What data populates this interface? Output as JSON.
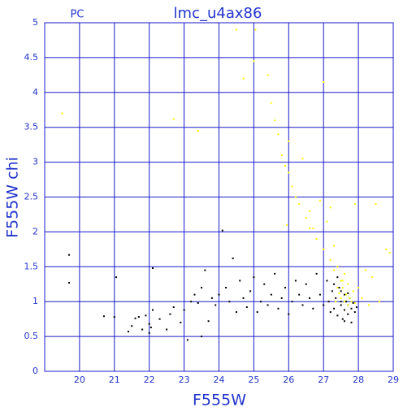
{
  "chart_data": {
    "type": "scatter",
    "title": "lmc_u4ax86",
    "corner_label": "PC",
    "x_label": "F555W",
    "y_label": "F555W chi",
    "xlim": [
      19,
      29
    ],
    "ylim": [
      0,
      5
    ],
    "xticks": [
      20,
      21,
      22,
      23,
      24,
      25,
      26,
      27,
      28,
      29
    ],
    "yticks": [
      0,
      0.5,
      1,
      1.5,
      2,
      2.5,
      3,
      3.5,
      4,
      4.5,
      5
    ],
    "grid": true,
    "grid_color": "#1a1acc",
    "series": [
      {
        "color": "#000000",
        "x": [
          19.7,
          19.7,
          20.7,
          21.0,
          21.05,
          21.4,
          21.5,
          21.6,
          21.7,
          21.8,
          21.9,
          22.0,
          22.0,
          22.05,
          22.1,
          22.1,
          22.3,
          22.5,
          22.6,
          22.7,
          22.9,
          23.0,
          23.1,
          23.2,
          23.3,
          23.4,
          23.5,
          23.5,
          23.6,
          23.7,
          23.8,
          23.9,
          24.0,
          24.1,
          24.2,
          24.3,
          24.4,
          24.5,
          24.6,
          24.7,
          24.8,
          24.9,
          25.0,
          25.1,
          25.2,
          25.3,
          25.4,
          25.5,
          25.6,
          25.7,
          25.8,
          25.9,
          26.0,
          26.1,
          26.2,
          26.3,
          26.4,
          26.5,
          26.6,
          26.7,
          26.8,
          26.9,
          27.0,
          27.1,
          27.15,
          27.2,
          27.25,
          27.3,
          27.35,
          27.4,
          27.45,
          27.5,
          27.5,
          27.55,
          27.6,
          27.6,
          27.65,
          27.7,
          27.7,
          27.75,
          27.8,
          27.8,
          27.85,
          27.9,
          27.95,
          27.4,
          27.3,
          27.5,
          27.6,
          27.7
        ],
        "y": [
          1.67,
          1.27,
          0.79,
          0.78,
          1.35,
          0.57,
          0.65,
          0.76,
          0.78,
          0.6,
          0.8,
          0.55,
          0.68,
          0.63,
          1.48,
          0.88,
          0.75,
          0.6,
          0.82,
          0.92,
          0.7,
          0.88,
          0.45,
          1.0,
          1.1,
          0.98,
          1.2,
          0.5,
          1.45,
          0.72,
          1.05,
          0.95,
          1.1,
          2.02,
          1.2,
          1.0,
          1.62,
          0.85,
          1.3,
          1.05,
          0.92,
          1.15,
          1.35,
          0.85,
          1.0,
          1.25,
          0.95,
          1.1,
          1.4,
          0.9,
          1.05,
          1.2,
          0.82,
          1.0,
          1.3,
          1.1,
          0.95,
          1.25,
          1.05,
          0.9,
          1.4,
          1.1,
          0.95,
          1.3,
          1.0,
          0.85,
          1.15,
          0.9,
          1.05,
          0.8,
          1.2,
          0.95,
          1.0,
          0.75,
          1.1,
          0.88,
          1.0,
          0.82,
          0.95,
          1.05,
          0.9,
          0.7,
          0.98,
          0.85,
          0.92,
          1.35,
          1.25,
          1.15,
          0.72,
          1.12
        ]
      },
      {
        "color": "#ffff00",
        "x": [
          19.5,
          22.7,
          23.4,
          24.5,
          24.7,
          25.0,
          25.05,
          25.4,
          25.5,
          25.6,
          25.7,
          25.8,
          25.9,
          26.0,
          26.0,
          26.1,
          26.2,
          26.3,
          26.4,
          26.5,
          26.6,
          26.7,
          26.8,
          26.9,
          27.0,
          27.0,
          27.1,
          27.2,
          27.3,
          27.4,
          27.5,
          27.55,
          27.6,
          27.65,
          27.7,
          27.75,
          27.8,
          27.85,
          27.9,
          27.5,
          27.4,
          27.3,
          27.6,
          27.7,
          28.0,
          28.2,
          28.4,
          28.6,
          28.8,
          28.9,
          27.9,
          28.5,
          26.6,
          27.2,
          25.95,
          27.35,
          27.45,
          27.55,
          28.1,
          28.3
        ],
        "y": [
          3.7,
          3.62,
          3.45,
          4.9,
          4.2,
          4.45,
          4.9,
          4.25,
          3.85,
          3.6,
          3.4,
          3.1,
          2.95,
          2.85,
          3.3,
          2.65,
          2.5,
          2.4,
          3.05,
          2.2,
          2.3,
          2.05,
          1.9,
          2.45,
          1.75,
          4.15,
          2.15,
          1.6,
          1.8,
          1.5,
          1.3,
          1.2,
          1.4,
          1.1,
          1.25,
          1.05,
          1.0,
          1.15,
          0.98,
          1.05,
          1.2,
          1.45,
          1.0,
          0.95,
          1.2,
          1.45,
          1.35,
          1.0,
          1.75,
          1.7,
          2.4,
          2.4,
          2.05,
          2.35,
          2.1,
          1.0,
          1.12,
          1.3,
          1.05,
          0.95
        ]
      }
    ]
  }
}
